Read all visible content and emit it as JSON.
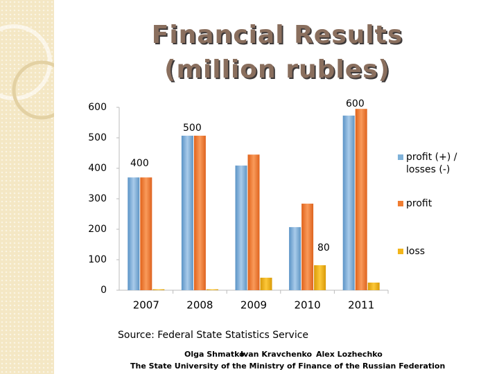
{
  "title": [
    "Financial Results",
    "(million rubles)"
  ],
  "chart_data": {
    "type": "bar",
    "categories": [
      "2007",
      "2008",
      "2009",
      "2010",
      "2011"
    ],
    "series": [
      {
        "name": "profit (+) / losses (-)",
        "color": "#7fb2d9",
        "values": [
          370,
          507,
          409,
          207,
          573
        ]
      },
      {
        "name": "profit",
        "color": "#f07d32",
        "values": [
          370,
          507,
          445,
          284,
          595
        ]
      },
      {
        "name": "loss",
        "color": "#f2b51a",
        "values": [
          3,
          3,
          41,
          82,
          25
        ]
      }
    ],
    "ylim": [
      0,
      600
    ],
    "yticks": [
      0,
      100,
      200,
      300,
      400,
      500,
      600
    ],
    "annotations": [
      "400",
      "500",
      "80",
      "600"
    ],
    "legend": "right"
  },
  "footer": {
    "source": "Source: Federal State Statistics Service",
    "authors": [
      "Olga Shmatko",
      "Ivan Kravchenko",
      "Alex Lozhechko"
    ],
    "institution": "The State University of the Ministry of Finance of the Russian Federation"
  }
}
